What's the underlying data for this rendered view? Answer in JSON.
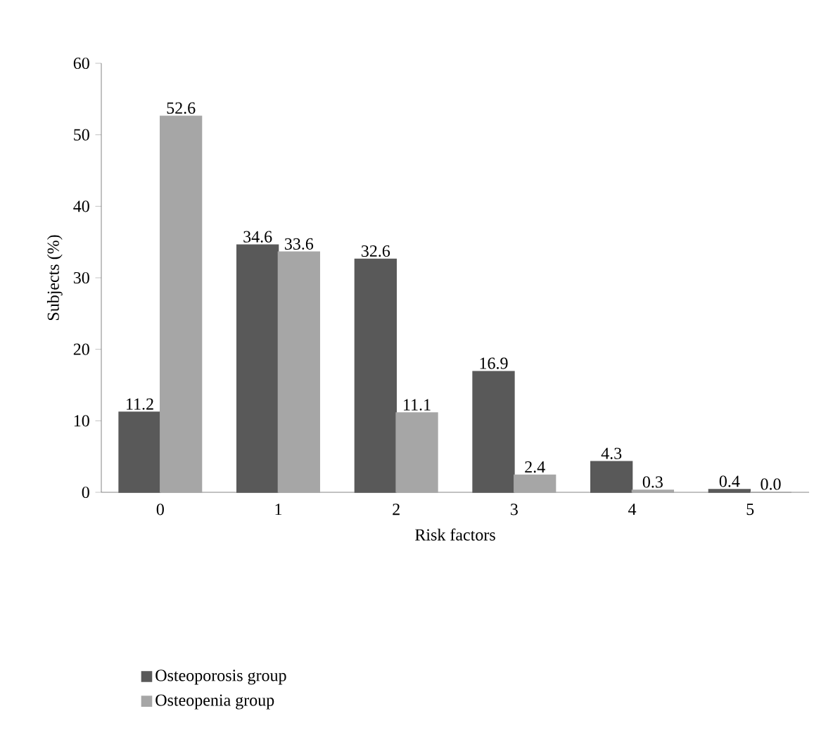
{
  "chart_data": {
    "type": "bar",
    "xlabel": "Risk factors",
    "ylabel": "Subjects (%)",
    "categories": [
      "0",
      "1",
      "2",
      "3",
      "4",
      "5"
    ],
    "series": [
      {
        "name": "Osteoporosis group",
        "color": "#595959",
        "values": [
          11.2,
          34.6,
          32.6,
          16.9,
          4.3,
          0.4
        ],
        "value_labels": [
          "11.2",
          "34.6",
          "32.6",
          "16.9",
          "4.3",
          "0.4"
        ]
      },
      {
        "name": "Osteopenia group",
        "color": "#a6a6a6",
        "values": [
          52.6,
          33.6,
          11.1,
          2.4,
          0.3,
          0.0
        ],
        "value_labels": [
          "52.6",
          "33.6",
          "11.1",
          "2.4",
          "0.3",
          "0.0"
        ]
      }
    ],
    "ylim": [
      0,
      60
    ],
    "yticks": [
      0,
      10,
      20,
      30,
      40,
      50,
      60
    ],
    "legend": "bottom left"
  }
}
